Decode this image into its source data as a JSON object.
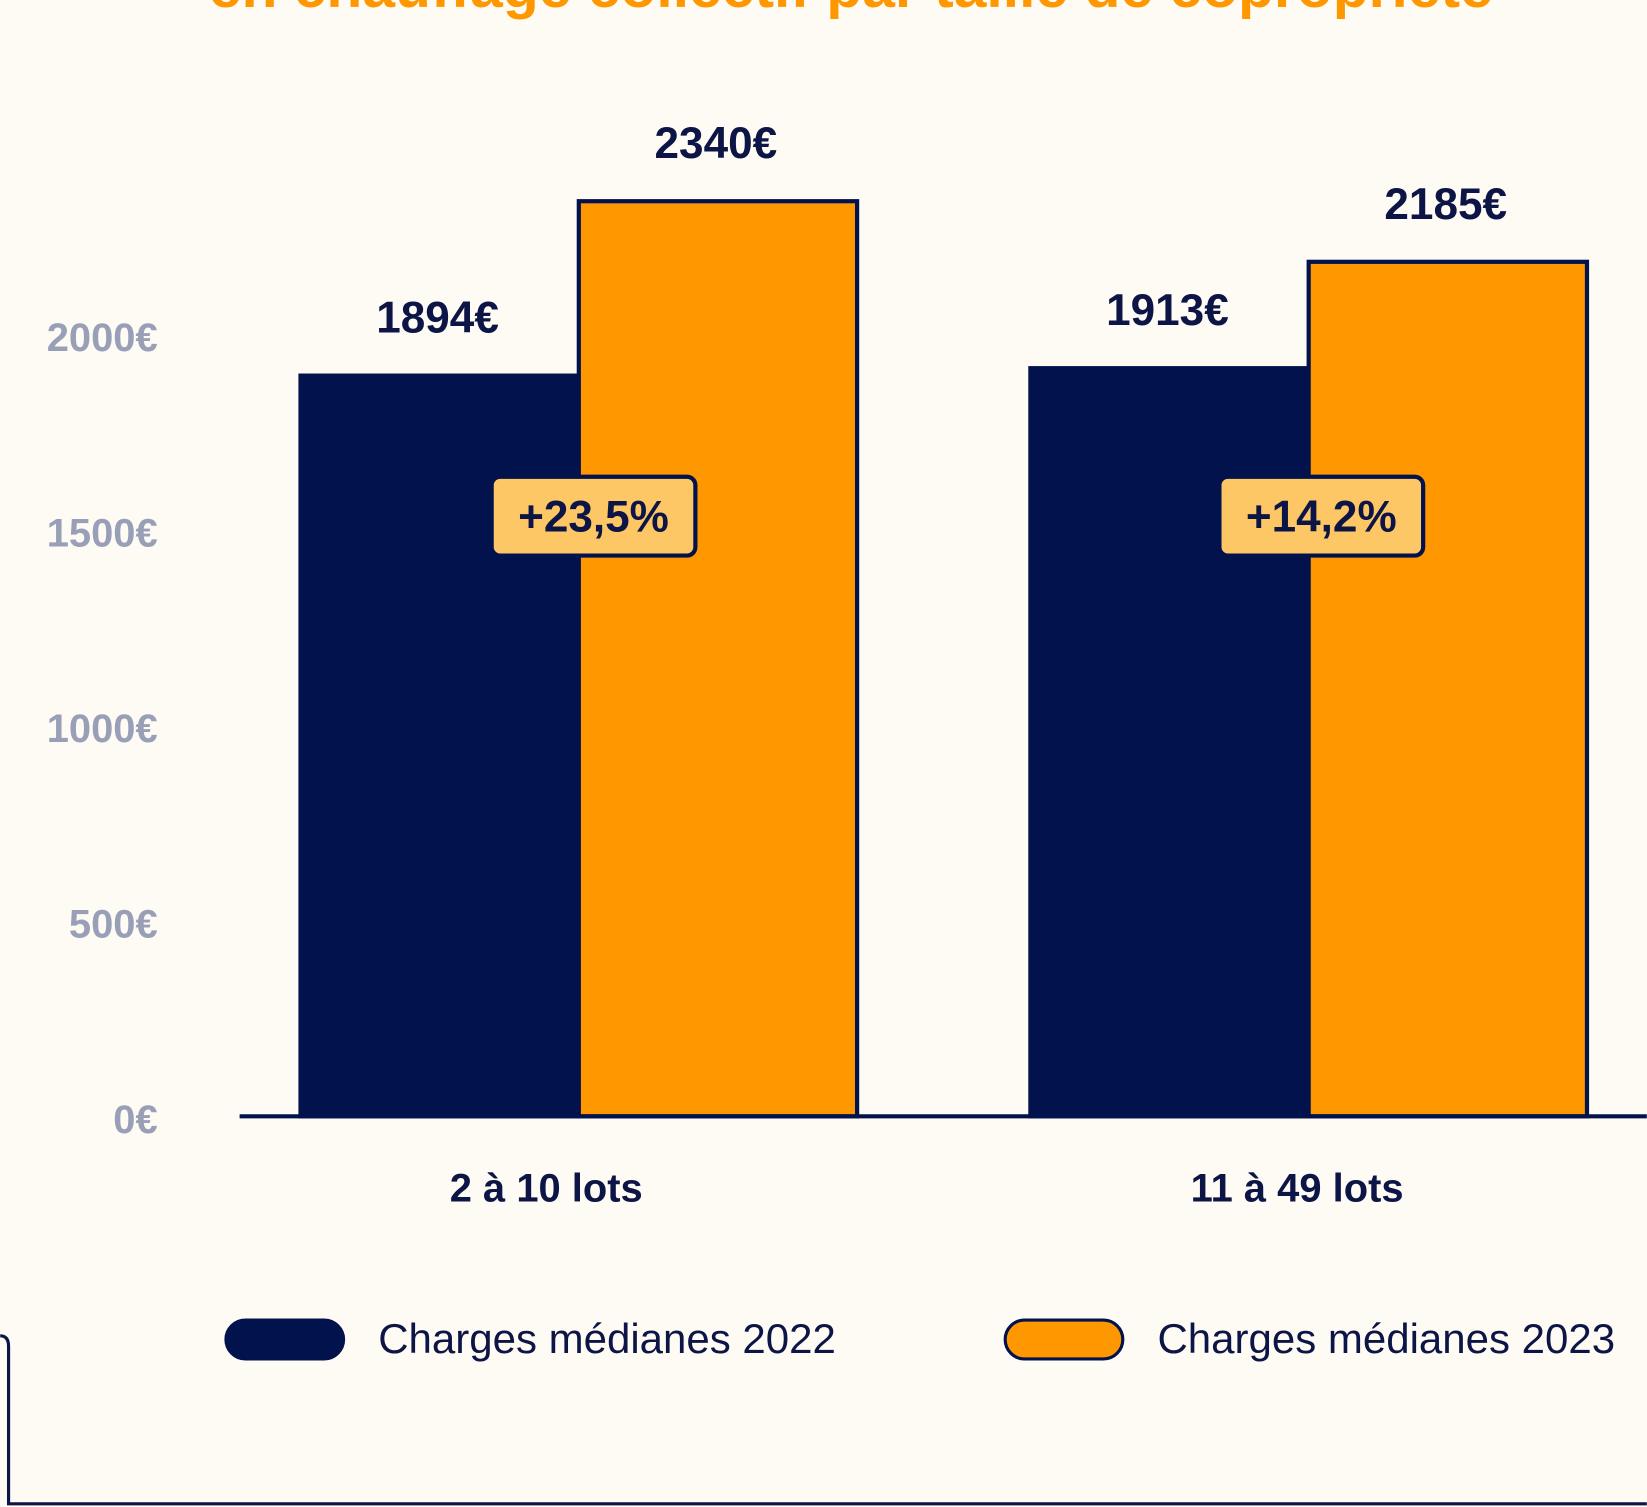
{
  "chart_data": {
    "type": "bar",
    "title": "en chauffage collectif par taille de copropriété",
    "categories": [
      "2 à 10 lots",
      "11 à 49 lots"
    ],
    "series": [
      {
        "name": "Charges médianes 2022",
        "color": "#02124d",
        "values": [
          1894,
          1913
        ],
        "value_labels": [
          "1894€",
          "1913€"
        ]
      },
      {
        "name": "Charges médianes 2023",
        "color": "#ff9800",
        "values": [
          2340,
          2185
        ],
        "value_labels": [
          "2340€",
          "2185€"
        ]
      }
    ],
    "annotations": [
      "+23,5%",
      "+14,2%"
    ],
    "ylim": [
      0,
      2500
    ],
    "yticks": [
      {
        "value": 0,
        "label": "0€"
      },
      {
        "value": 500,
        "label": "500€"
      },
      {
        "value": 1000,
        "label": "1000€"
      },
      {
        "value": 1500,
        "label": "1500€"
      },
      {
        "value": 2000,
        "label": "2000€"
      }
    ],
    "grid": false,
    "legend": "bottom"
  }
}
